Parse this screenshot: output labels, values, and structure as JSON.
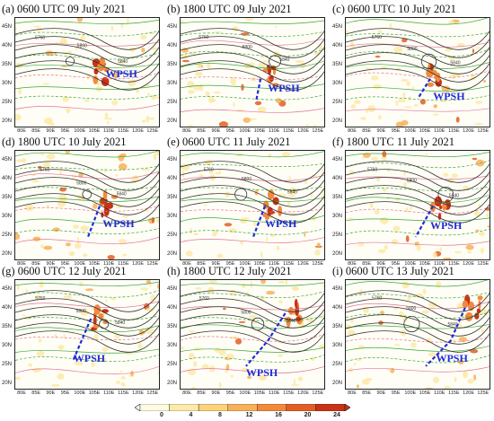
{
  "panels": [
    {
      "title": "(a) 0600 UTC 09 July 2021",
      "wpsh": "WPSH",
      "trough": []
    },
    {
      "title": "(b) 1800 UTC 09 July 2021",
      "wpsh": "WPSH",
      "trough": [
        [
          0.55,
          0.55
        ],
        [
          0.52,
          0.75
        ]
      ]
    },
    {
      "title": "(c) 0600 UTC 10 July 2021",
      "wpsh": "WPSH",
      "trough": [
        [
          0.58,
          0.55
        ],
        [
          0.5,
          0.72
        ]
      ]
    },
    {
      "title": "(d) 1800 UTC 10 July 2021",
      "wpsh": "WPSH",
      "trough": [
        [
          0.58,
          0.5
        ],
        [
          0.5,
          0.78
        ]
      ]
    },
    {
      "title": "(e) 0600 UTC 11 July 2021",
      "wpsh": "WPSH",
      "trough": [
        [
          0.58,
          0.5
        ],
        [
          0.5,
          0.78
        ]
      ]
    },
    {
      "title": "(f) 1800 UTC 11 July 2021",
      "wpsh": "WPSH",
      "trough": [
        [
          0.6,
          0.5
        ],
        [
          0.48,
          0.78
        ]
      ]
    },
    {
      "title": "(g) 0600 UTC 12 July 2021",
      "wpsh": "WPSH",
      "trough": [
        [
          0.52,
          0.35
        ],
        [
          0.4,
          0.72
        ]
      ]
    },
    {
      "title": "(h) 1800 UTC 12 July 2021",
      "wpsh": "WPSH",
      "trough": [
        [
          0.72,
          0.3
        ],
        [
          0.6,
          0.55
        ],
        [
          0.45,
          0.78
        ]
      ]
    },
    {
      "title": "(i) 0600 UTC 13 July 2021",
      "wpsh": "WPSH",
      "trough": [
        [
          0.82,
          0.25
        ],
        [
          0.72,
          0.55
        ],
        [
          0.55,
          0.78
        ]
      ]
    }
  ],
  "y_ticks": [
    "45N",
    "40N",
    "35N",
    "30N",
    "25N",
    "20N"
  ],
  "x_ticks": [
    "80E",
    "85E",
    "90E",
    "95E",
    "100E",
    "105E",
    "110E",
    "115E",
    "120E",
    "125E"
  ],
  "contour_labels": [
    "5760",
    "5800",
    "5840",
    "5860",
    "5880"
  ],
  "colorbar": {
    "ticks": [
      "0",
      "4",
      "8",
      "12",
      "16",
      "20",
      "24"
    ],
    "colors": [
      "#fffbe0",
      "#fde9a8",
      "#fcd27a",
      "#f8b05a",
      "#f28a3c",
      "#e35e25",
      "#c93216"
    ]
  },
  "colors": {
    "geopotential": "#333333",
    "wind_green": "#3aa63a",
    "wind_pink": "#e0749a",
    "trough": "#1f2bd8",
    "wpsh_label": "#1f2bd8"
  }
}
